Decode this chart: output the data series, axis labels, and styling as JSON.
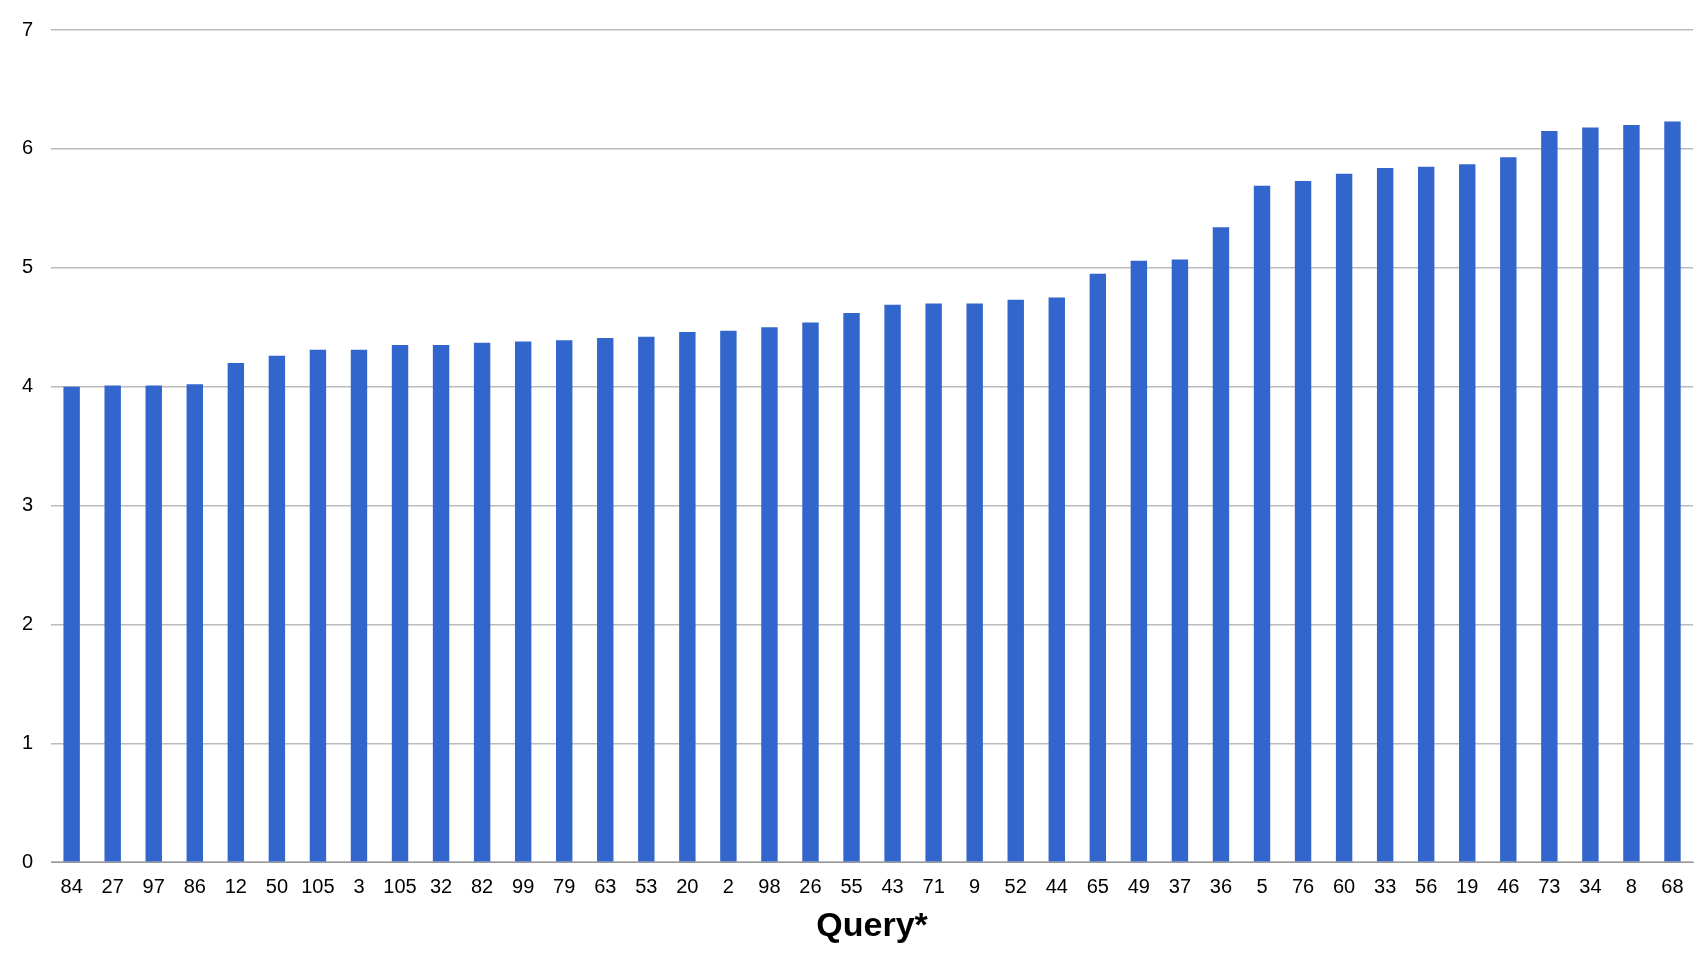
{
  "chart_data": {
    "type": "bar",
    "xlabel": "Query*",
    "categories": [
      "84",
      "27",
      "97",
      "86",
      "12",
      "50",
      "105",
      "3",
      "105",
      "32",
      "82",
      "99",
      "79",
      "63",
      "53",
      "20",
      "2",
      "98",
      "26",
      "55",
      "43",
      "71",
      "9",
      "52",
      "44",
      "65",
      "49",
      "37",
      "36",
      "5",
      "76",
      "60",
      "33",
      "56",
      "19",
      "46",
      "73",
      "34",
      "8",
      "68"
    ],
    "values": [
      4.0,
      4.01,
      4.01,
      4.02,
      4.2,
      4.26,
      4.31,
      4.31,
      4.35,
      4.35,
      4.37,
      4.38,
      4.39,
      4.41,
      4.42,
      4.46,
      4.47,
      4.5,
      4.54,
      4.62,
      4.69,
      4.7,
      4.7,
      4.73,
      4.75,
      4.95,
      5.06,
      5.07,
      5.34,
      5.69,
      5.73,
      5.79,
      5.84,
      5.85,
      5.87,
      5.93,
      6.15,
      6.18,
      6.2,
      6.23
    ],
    "color": "#3366cc",
    "ylim": [
      0,
      7
    ],
    "yticks": [
      0,
      1,
      2,
      3,
      4,
      5,
      6,
      7
    ],
    "grid": "y",
    "legend": false
  }
}
